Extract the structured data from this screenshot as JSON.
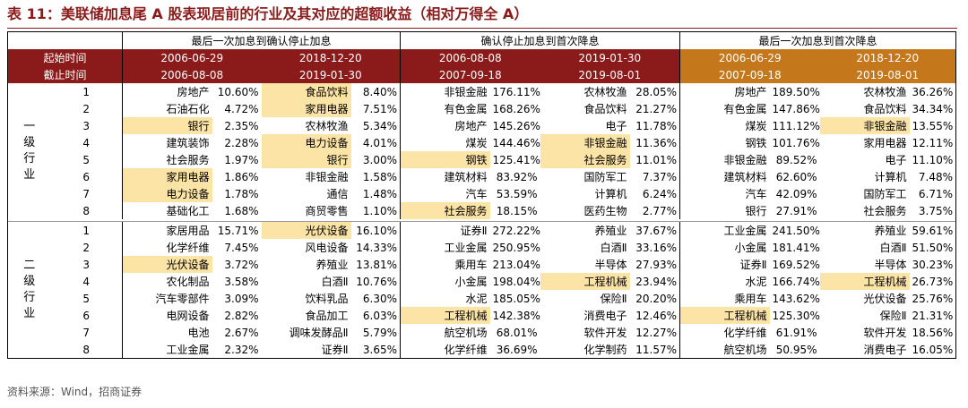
{
  "title": "表 11：美联储加息尾 A 股表现居前的行业及其对应的超额收益（相对万得全 A）",
  "header": {
    "col_groups": [
      "最后一次加息到确认停止加息",
      "确认停止加息到首次降息",
      "最后一次加息到首次降息"
    ],
    "start_label": "起始时间",
    "end_label": "截止时间",
    "start_dates": [
      "2006-06-29",
      "2018-12-20",
      "2006-08-08",
      "2019-01-30",
      "2006-06-29",
      "2018-12-20"
    ],
    "end_dates": [
      "2006-08-08",
      "2019-01-30",
      "2007-09-18",
      "2019-08-01",
      "2007-09-18",
      "2019-08-01"
    ]
  },
  "colors": {
    "header_red": "#8b1a1a",
    "header_orange": "#c5781b",
    "highlight": "#fce4a6"
  },
  "sections": [
    {
      "category_chars": [
        "一",
        "级",
        "行",
        "业"
      ],
      "rows": [
        {
          "rank": "1",
          "cells": [
            {
              "name": "房地产",
              "pct": "10.60%"
            },
            {
              "name": "食品饮料",
              "pct": "8.40%"
            },
            {
              "name": "非银金融",
              "pct": "176.11%"
            },
            {
              "name": "农林牧渔",
              "pct": "28.05%"
            },
            {
              "name": "房地产",
              "pct": "189.50%"
            },
            {
              "name": "农林牧渔",
              "pct": "36.26%"
            }
          ]
        },
        {
          "rank": "2",
          "cells": [
            {
              "name": "石油石化",
              "pct": "4.72%"
            },
            {
              "name": "家用电器",
              "pct": "7.51%"
            },
            {
              "name": "有色金属",
              "pct": "168.26%"
            },
            {
              "name": "食品饮料",
              "pct": "21.27%"
            },
            {
              "name": "有色金属",
              "pct": "147.86%"
            },
            {
              "name": "食品饮料",
              "pct": "34.34%"
            }
          ]
        },
        {
          "rank": "3",
          "cells": [
            {
              "name": "银行",
              "pct": "2.35%"
            },
            {
              "name": "农林牧渔",
              "pct": "5.34%"
            },
            {
              "name": "房地产",
              "pct": "145.26%"
            },
            {
              "name": "电子",
              "pct": "11.78%"
            },
            {
              "name": "煤炭",
              "pct": "111.12%"
            },
            {
              "name": "非银金融",
              "pct": "13.55%"
            }
          ]
        },
        {
          "rank": "4",
          "cells": [
            {
              "name": "建筑装饰",
              "pct": "2.28%"
            },
            {
              "name": "电力设备",
              "pct": "4.01%"
            },
            {
              "name": "煤炭",
              "pct": "144.46%"
            },
            {
              "name": "非银金融",
              "pct": "11.36%"
            },
            {
              "name": "钢铁",
              "pct": "101.76%"
            },
            {
              "name": "家用电器",
              "pct": "12.11%"
            }
          ]
        },
        {
          "rank": "5",
          "cells": [
            {
              "name": "社会服务",
              "pct": "1.97%"
            },
            {
              "name": "银行",
              "pct": "3.00%"
            },
            {
              "name": "钢铁",
              "pct": "125.41%"
            },
            {
              "name": "社会服务",
              "pct": "11.01%"
            },
            {
              "name": "非银金融",
              "pct": "89.52%"
            },
            {
              "name": "电子",
              "pct": "11.10%"
            }
          ]
        },
        {
          "rank": "6",
          "cells": [
            {
              "name": "家用电器",
              "pct": "1.86%"
            },
            {
              "name": "非银金融",
              "pct": "1.58%"
            },
            {
              "name": "建筑材料",
              "pct": "83.92%"
            },
            {
              "name": "国防军工",
              "pct": "7.37%"
            },
            {
              "name": "建筑材料",
              "pct": "62.60%"
            },
            {
              "name": "计算机",
              "pct": "7.48%"
            }
          ]
        },
        {
          "rank": "7",
          "cells": [
            {
              "name": "电力设备",
              "pct": "1.78%"
            },
            {
              "name": "通信",
              "pct": "1.48%"
            },
            {
              "name": "汽车",
              "pct": "53.59%"
            },
            {
              "name": "计算机",
              "pct": "6.24%"
            },
            {
              "name": "汽车",
              "pct": "42.09%"
            },
            {
              "name": "国防军工",
              "pct": "6.71%"
            }
          ]
        },
        {
          "rank": "8",
          "cells": [
            {
              "name": "基础化工",
              "pct": "1.68%"
            },
            {
              "name": "商贸零售",
              "pct": "1.10%"
            },
            {
              "name": "社会服务",
              "pct": "18.15%"
            },
            {
              "name": "医药生物",
              "pct": "2.77%"
            },
            {
              "name": "银行",
              "pct": "27.91%"
            },
            {
              "name": "社会服务",
              "pct": "3.75%"
            }
          ]
        }
      ]
    },
    {
      "category_chars": [
        "二",
        "级",
        "行",
        "业"
      ],
      "rows": [
        {
          "rank": "1",
          "cells": [
            {
              "name": "家居用品",
              "pct": "15.71%"
            },
            {
              "name": "光伏设备",
              "pct": "16.10%"
            },
            {
              "name": "证券Ⅱ",
              "pct": "272.22%"
            },
            {
              "name": "养殖业",
              "pct": "37.67%"
            },
            {
              "name": "工业金属",
              "pct": "241.50%"
            },
            {
              "name": "养殖业",
              "pct": "59.61%"
            }
          ]
        },
        {
          "rank": "2",
          "cells": [
            {
              "name": "化学纤维",
              "pct": "7.45%"
            },
            {
              "name": "风电设备",
              "pct": "14.33%"
            },
            {
              "name": "工业金属",
              "pct": "250.95%"
            },
            {
              "name": "白酒Ⅱ",
              "pct": "33.16%"
            },
            {
              "name": "小金属",
              "pct": "181.41%"
            },
            {
              "name": "白酒Ⅱ",
              "pct": "51.50%"
            }
          ]
        },
        {
          "rank": "3",
          "cells": [
            {
              "name": "光伏设备",
              "pct": "3.72%"
            },
            {
              "name": "养殖业",
              "pct": "13.81%"
            },
            {
              "name": "乘用车",
              "pct": "213.04%"
            },
            {
              "name": "半导体",
              "pct": "27.93%"
            },
            {
              "name": "证券Ⅱ",
              "pct": "169.52%"
            },
            {
              "name": "半导体",
              "pct": "30.23%"
            }
          ]
        },
        {
          "rank": "4",
          "cells": [
            {
              "name": "农化制品",
              "pct": "3.58%"
            },
            {
              "name": "白酒Ⅱ",
              "pct": "10.76%"
            },
            {
              "name": "小金属",
              "pct": "198.04%"
            },
            {
              "name": "工程机械",
              "pct": "23.94%"
            },
            {
              "name": "水泥",
              "pct": "166.74%"
            },
            {
              "name": "工程机械",
              "pct": "26.73%"
            }
          ]
        },
        {
          "rank": "5",
          "cells": [
            {
              "name": "汽车零部件",
              "pct": "3.09%"
            },
            {
              "name": "饮料乳品",
              "pct": "6.30%"
            },
            {
              "name": "水泥",
              "pct": "185.05%"
            },
            {
              "name": "保险Ⅱ",
              "pct": "20.20%"
            },
            {
              "name": "乘用车",
              "pct": "143.62%"
            },
            {
              "name": "光伏设备",
              "pct": "25.76%"
            }
          ]
        },
        {
          "rank": "6",
          "cells": [
            {
              "name": "电网设备",
              "pct": "2.82%"
            },
            {
              "name": "食品加工",
              "pct": "6.03%"
            },
            {
              "name": "工程机械",
              "pct": "142.38%"
            },
            {
              "name": "消费电子",
              "pct": "12.46%"
            },
            {
              "name": "工程机械",
              "pct": "125.30%"
            },
            {
              "name": "保险Ⅱ",
              "pct": "21.31%"
            }
          ]
        },
        {
          "rank": "7",
          "cells": [
            {
              "name": "电池",
              "pct": "2.67%"
            },
            {
              "name": "调味发酵品Ⅱ",
              "pct": "5.79%"
            },
            {
              "name": "航空机场",
              "pct": "68.01%"
            },
            {
              "name": "软件开发",
              "pct": "12.27%"
            },
            {
              "name": "化学纤维",
              "pct": "61.91%"
            },
            {
              "name": "软件开发",
              "pct": "18.56%"
            }
          ]
        },
        {
          "rank": "8",
          "cells": [
            {
              "name": "工业金属",
              "pct": "2.32%"
            },
            {
              "name": "证券Ⅱ",
              "pct": "3.65%"
            },
            {
              "name": "化学纤维",
              "pct": "36.69%"
            },
            {
              "name": "化学制药",
              "pct": "11.57%"
            },
            {
              "name": "航空机场",
              "pct": "50.95%"
            },
            {
              "name": "消费电子",
              "pct": "16.05%"
            }
          ]
        }
      ]
    }
  ],
  "highlights": [
    [
      [],
      [
        1
      ],
      [
        0
      ],
      [],
      [],
      []
    ],
    [
      [],
      [],
      [],
      [],
      [],
      []
    ],
    [
      [
        0
      ],
      [],
      [],
      [],
      [],
      [
        5
      ]
    ],
    [
      [],
      [
        1
      ],
      [],
      [
        3
      ],
      [],
      []
    ],
    [
      [],
      [],
      [],
      [
        3
      ],
      [
        4
      ],
      []
    ],
    [
      [
        0
      ],
      [],
      [],
      [],
      [],
      []
    ],
    [
      [
        0
      ],
      [],
      [],
      [],
      [],
      []
    ],
    [
      [],
      [],
      [
        2
      ],
      [],
      [],
      []
    ]
  ],
  "source": "资料来源：Wind，招商证券"
}
